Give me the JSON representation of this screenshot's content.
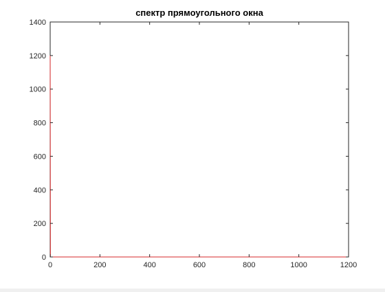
{
  "chart_data": {
    "type": "line",
    "title": "спектр прямоугольного окна",
    "xlabel": "",
    "ylabel": "",
    "xlim": [
      0,
      1200
    ],
    "ylim": [
      0,
      1400
    ],
    "xticks": [
      0,
      200,
      400,
      600,
      800,
      1000,
      1200
    ],
    "yticks": [
      0,
      200,
      400,
      600,
      800,
      1000,
      1200,
      1400
    ],
    "grid": false,
    "legend": "none",
    "colors": {
      "series": "#d62728",
      "axes": "#262626",
      "background": "#ffffff"
    },
    "series": [
      {
        "color": "#d62728",
        "x": [
          0,
          1,
          2,
          10,
          100,
          600,
          1200
        ],
        "y": [
          1200,
          0,
          0,
          0,
          0,
          0,
          0
        ]
      }
    ]
  }
}
